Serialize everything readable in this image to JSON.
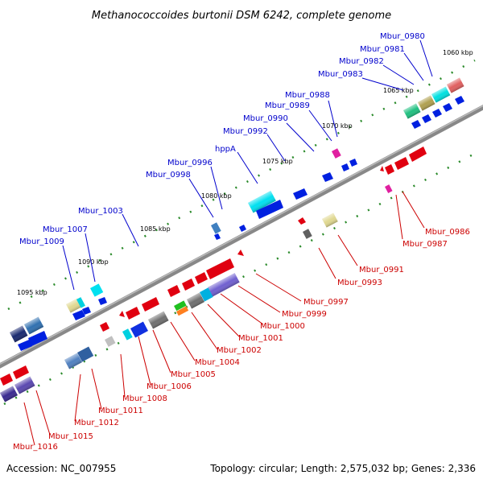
{
  "title": "Methanococcoides burtonii DSM 6242, complete genome",
  "footer": {
    "accession": "Accession: NC_007955",
    "summary": "Topology: circular; Length: 2,575,032 bp; Genes: 2,336"
  },
  "ticks": [
    {
      "label": "1060 kbp"
    },
    {
      "label": "1065 kbp"
    },
    {
      "label": "1070 kbp"
    },
    {
      "label": "1075 kbp"
    },
    {
      "label": "1080 kbp"
    },
    {
      "label": "1085 kbp"
    },
    {
      "label": "1090 kbp"
    },
    {
      "label": "1095 kbp"
    }
  ],
  "labels_top": [
    {
      "text": "Mbur_0980"
    },
    {
      "text": "Mbur_0981"
    },
    {
      "text": "Mbur_0982"
    },
    {
      "text": "Mbur_0983"
    },
    {
      "text": "Mbur_0988"
    },
    {
      "text": "Mbur_0989"
    },
    {
      "text": "Mbur_0990"
    },
    {
      "text": "Mbur_0992"
    },
    {
      "text": "hppA"
    },
    {
      "text": "Mbur_0996"
    },
    {
      "text": "Mbur_0998"
    },
    {
      "text": "Mbur_1003"
    },
    {
      "text": "Mbur_1007"
    },
    {
      "text": "Mbur_1009"
    }
  ],
  "labels_bottom": [
    {
      "text": "Mbur_0986"
    },
    {
      "text": "Mbur_0987"
    },
    {
      "text": "Mbur_0991"
    },
    {
      "text": "Mbur_0993"
    },
    {
      "text": "Mbur_0997"
    },
    {
      "text": "Mbur_0999"
    },
    {
      "text": "Mbur_1000"
    },
    {
      "text": "Mbur_1001"
    },
    {
      "text": "Mbur_1002"
    },
    {
      "text": "Mbur_1004"
    },
    {
      "text": "Mbur_1005"
    },
    {
      "text": "Mbur_1006"
    },
    {
      "text": "Mbur_1008"
    },
    {
      "text": "Mbur_1011"
    },
    {
      "text": "Mbur_1012"
    },
    {
      "text": "Mbur_1015"
    },
    {
      "text": "Mbur_1016"
    }
  ]
}
